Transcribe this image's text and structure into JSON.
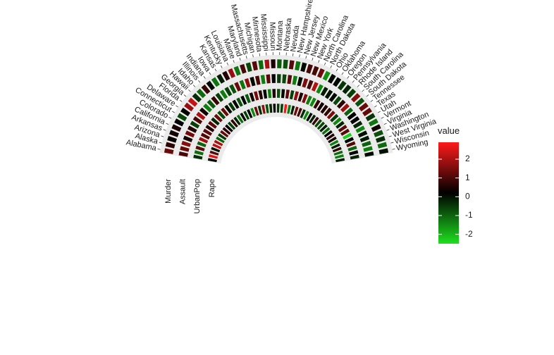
{
  "chart_data": {
    "type": "heatmap",
    "layout": "polar-semicircle",
    "states": [
      "Alabama",
      "Alaska",
      "Arizona",
      "Arkansas",
      "California",
      "Colorado",
      "Connecticut",
      "Delaware",
      "Florida",
      "Georgia",
      "Hawaii",
      "Idaho",
      "Illinois",
      "Indiana",
      "Iowa",
      "Kansas",
      "Kentucky",
      "Louisiana",
      "Maine",
      "Maryland",
      "Massachusetts",
      "Michigan",
      "Minnesota",
      "Mississippi",
      "Missouri",
      "Montana",
      "Nebraska",
      "Nevada",
      "New Hampshire",
      "New Jersey",
      "New Mexico",
      "New York",
      "North Carolina",
      "North Dakota",
      "Ohio",
      "Oklahoma",
      "Oregon",
      "Pennsylvania",
      "Rhode Island",
      "South Carolina",
      "South Dakota",
      "Tennessee",
      "Texas",
      "Utah",
      "Vermont",
      "Virginia",
      "Washington",
      "West Virginia",
      "Wisconsin",
      "Wyoming"
    ],
    "variables": [
      "Rape",
      "UrbanPop",
      "Assault",
      "Murder"
    ],
    "values": {
      "Rape": [
        0.0,
        2.5,
        1.0,
        -0.2,
        2.1,
        1.9,
        -1.1,
        -0.6,
        1.1,
        0.5,
        0.1,
        -0.7,
        0.5,
        -0.4,
        -1.2,
        -0.1,
        -0.7,
        0.0,
        -1.5,
        1.2,
        -0.5,
        1.6,
        -0.9,
        -0.4,
        0.1,
        -0.6,
        -0.7,
        2.8,
        -1.4,
        -0.3,
        1.2,
        0.7,
        -0.5,
        -1.5,
        -0.1,
        -0.3,
        0.6,
        -0.8,
        -0.8,
        -0.3,
        -1.2,
        0.0,
        0.4,
        0.2,
        -1.4,
        -0.3,
        0.5,
        -1.2,
        -1.4,
        -0.3
      ],
      "UrbanPop": [
        -0.5,
        -1.2,
        1.0,
        -1.1,
        1.8,
        0.9,
        1.0,
        0.4,
        1.0,
        -0.4,
        1.2,
        -0.8,
        1.2,
        -0.1,
        -0.6,
        0.0,
        -0.9,
        0.0,
        -1.0,
        0.2,
        1.3,
        0.4,
        0.0,
        -1.4,
        0.3,
        -0.9,
        -0.1,
        1.0,
        -0.7,
        1.6,
        0.3,
        1.4,
        -1.4,
        -1.5,
        0.6,
        0.2,
        0.4,
        0.6,
        1.4,
        -0.6,
        -1.5,
        -0.4,
        1.0,
        1.0,
        -2.3,
        0.0,
        0.9,
        -1.1,
        0.0,
        -0.4
      ],
      "Assault": [
        0.8,
        1.1,
        1.5,
        0.2,
        1.3,
        0.4,
        -0.7,
        0.8,
        1.9,
        0.2,
        -1.4,
        -1.0,
        0.6,
        -0.7,
        -1.4,
        -0.7,
        -0.9,
        1.2,
        -1.3,
        1.6,
        -0.1,
        0.8,
        -1.4,
        1.0,
        0.0,
        -0.7,
        -0.8,
        1.0,
        -1.4,
        -0.1,
        1.4,
        0.8,
        2.0,
        -1.5,
        -0.3,
        -0.2,
        -0.1,
        -0.8,
        0.5,
        1.8,
        -1.1,
        0.0,
        0.0,
        -0.4,
        -1.5,
        -0.2,
        -0.3,
        -1.1,
        -1.4,
        -0.1
      ],
      "Murder": [
        1.2,
        0.5,
        0.1,
        0.2,
        0.3,
        0.0,
        -0.8,
        0.0,
        1.7,
        2.2,
        -0.5,
        -1.2,
        0.6,
        -0.1,
        -1.3,
        -0.3,
        0.4,
        1.7,
        -1.3,
        0.8,
        -0.8,
        1.0,
        -1.2,
        1.9,
        0.3,
        -1.0,
        -0.9,
        1.0,
        -1.3,
        -0.1,
        0.8,
        0.8,
        1.2,
        -1.6,
        -0.1,
        -0.1,
        -0.6,
        -0.4,
        -0.7,
        1.5,
        -0.9,
        1.2,
        1.1,
        -0.6,
        -1.3,
        0.2,
        -0.9,
        -0.5,
        -1.2,
        -0.2
      ]
    },
    "color_scale": {
      "low": "#1ee01e",
      "mid": "#000000",
      "high": "#ff1a1a",
      "domain": [
        -2.5,
        2.9
      ]
    },
    "legend": {
      "title": "value",
      "ticks": [
        2,
        1,
        0,
        -1,
        -2
      ],
      "placement": "right"
    },
    "grid": false
  }
}
